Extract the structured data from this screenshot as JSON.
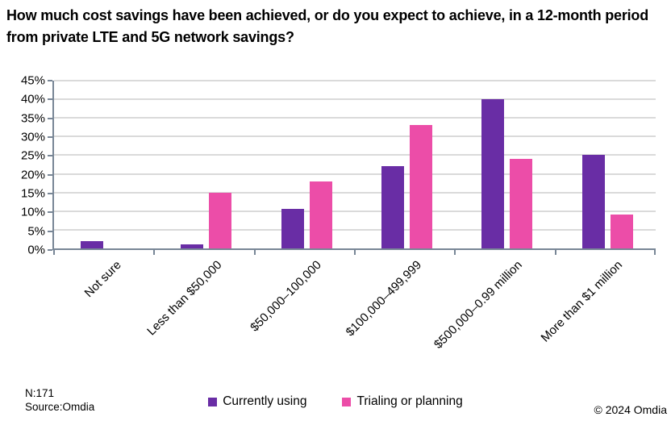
{
  "title_lines": {
    "line1": "How much cost savings have been achieved, or do you expect to achieve, in a 12-month period",
    "line2": "from private LTE and 5G network savings?"
  },
  "footer": {
    "sample_size": "N:171",
    "source": "Source:Omdia",
    "copyright": "© 2024 Omdia"
  },
  "chart_data": {
    "type": "bar",
    "title": "How much cost savings have been achieved, or do you expect to achieve, in a 12-month period from private LTE and 5G network savings?",
    "categories": [
      "Not sure",
      "Less than $50,000",
      "$50,000–100,000",
      "$100,000–499,999",
      "$500,000–0.99 million",
      "More than $1 million"
    ],
    "series": [
      {
        "name": "Currently using",
        "color": "#692DA5",
        "values": [
          2,
          1,
          10.5,
          22,
          40,
          25
        ]
      },
      {
        "name": "Trialing or planning",
        "color": "#EC4DA8",
        "values": [
          0,
          15,
          18,
          33,
          24,
          9
        ]
      }
    ],
    "xlabel": "",
    "ylabel": "",
    "ylim": [
      0,
      45
    ],
    "ytick_step": 5,
    "ytick_suffix": "%",
    "grid": "horizontal",
    "grid_color": "#DADADA",
    "axis_color": "#788696",
    "legend_position": "bottom",
    "xlabel_rotation": -45
  }
}
